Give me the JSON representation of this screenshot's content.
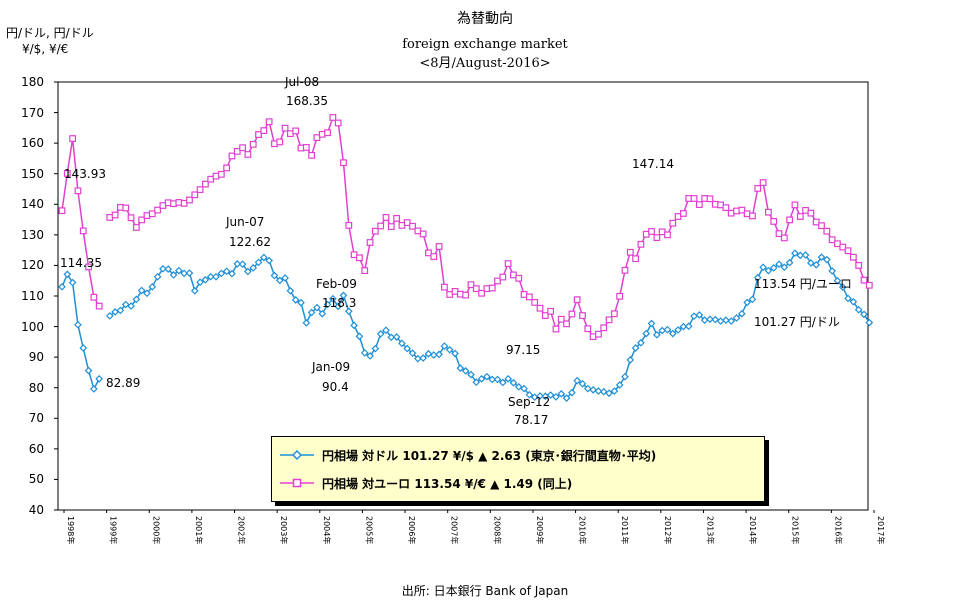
{
  "title": {
    "line1": "為替動向",
    "line2": "foreign exchange market",
    "line3": "<8月/August-2016>"
  },
  "y_unit": {
    "line1": "円/ドル, 円/ドル",
    "line2": "¥/$, ¥/€"
  },
  "legend": {
    "usd": "円相場 対ドル 101.27 ¥/$ ▲ 2.63 (東京･銀行間直物･平均)",
    "eur": "円相場 対ユーロ 113.54 ¥/€ ▲ 1.49 (同上)"
  },
  "source": "出所: 日本銀行 Bank of Japan",
  "annotations": {
    "usd_1998": "114.35",
    "eur_2000": "143.93",
    "usd_2005": "82.89",
    "usd_peak_month": "Jun-07",
    "usd_peak_value": "122.62",
    "eur_peak_month": "Jul-08",
    "eur_peak_value": "168.35",
    "eur_feb09_month": "Feb-09",
    "eur_feb09_value": "118.3",
    "usd_jan09_month": "Jan-09",
    "usd_jan09_value": "90.4",
    "eur_low_value": "97.15",
    "usd_low_month": "Sep-12",
    "usd_low_value": "78.17",
    "eur_2014_value": "147.14",
    "eur_latest": "113.54 円/ユーロ",
    "usd_latest": "101.27 円/ドル"
  },
  "colors": {
    "usd": "#1e8fd8",
    "eur": "#e040d0",
    "legend_bg": "#ffffcc"
  },
  "chart_data": {
    "type": "line",
    "ylim": [
      40,
      180
    ],
    "yticks": [
      40,
      50,
      60,
      70,
      80,
      90,
      100,
      110,
      120,
      130,
      140,
      150,
      160,
      170,
      180
    ],
    "x_labels": [
      "1998年",
      "1999年",
      "2000年",
      "2001年",
      "2002年",
      "2003年",
      "2004年",
      "2005年",
      "2006年",
      "2007年",
      "2008年",
      "2009年",
      "2010年",
      "2011年",
      "2012年",
      "2013年",
      "2014年",
      "2015年",
      "2016年",
      "2017年"
    ],
    "xlim": [
      0,
      151
    ],
    "series": [
      {
        "name": "円相場 対ドル",
        "marker": "diamond",
        "points": [
          [
            0,
            113.0
          ],
          [
            1,
            117.1
          ],
          [
            2,
            114.4
          ],
          [
            3,
            100.6
          ],
          [
            4,
            93.0
          ],
          [
            5,
            85.6
          ],
          [
            6,
            79.6
          ],
          [
            7,
            82.9
          ],
          [
            8,
            null
          ],
          [
            9,
            103.5
          ],
          [
            10,
            104.8
          ],
          [
            11,
            105.3
          ],
          [
            12,
            107.2
          ],
          [
            13,
            106.7
          ],
          [
            14,
            108.9
          ],
          [
            15,
            111.8
          ],
          [
            16,
            110.9
          ],
          [
            17,
            113.0
          ],
          [
            18,
            116.3
          ],
          [
            19,
            118.9
          ],
          [
            20,
            118.8
          ],
          [
            21,
            116.9
          ],
          [
            22,
            118.3
          ],
          [
            23,
            117.4
          ],
          [
            24,
            117.5
          ],
          [
            25,
            111.7
          ],
          [
            26,
            114.5
          ],
          [
            27,
            115.3
          ],
          [
            28,
            116.3
          ],
          [
            29,
            116.3
          ],
          [
            30,
            117.4
          ],
          [
            31,
            118.1
          ],
          [
            32,
            117.3
          ],
          [
            33,
            120.5
          ],
          [
            34,
            120.4
          ],
          [
            35,
            118.0
          ],
          [
            36,
            119.2
          ],
          [
            37,
            121.0
          ],
          [
            38,
            122.6
          ],
          [
            39,
            121.6
          ],
          [
            40,
            116.7
          ],
          [
            41,
            115.1
          ],
          [
            42,
            115.9
          ],
          [
            43,
            111.7
          ],
          [
            44,
            108.7
          ],
          [
            45,
            107.8
          ],
          [
            46,
            101.2
          ],
          [
            47,
            104.6
          ],
          [
            48,
            106.2
          ],
          [
            49,
            104.2
          ],
          [
            50,
            107.2
          ],
          [
            51,
            109.1
          ],
          [
            52,
            106.6
          ],
          [
            53,
            110.2
          ],
          [
            54,
            105.0
          ],
          [
            55,
            100.4
          ],
          [
            56,
            96.8
          ],
          [
            57,
            91.4
          ],
          [
            58,
            90.4
          ],
          [
            59,
            92.8
          ],
          [
            60,
            97.6
          ],
          [
            61,
            98.8
          ],
          [
            62,
            96.5
          ],
          [
            63,
            96.6
          ],
          [
            64,
            94.5
          ],
          [
            65,
            92.8
          ],
          [
            66,
            91.3
          ],
          [
            67,
            89.5
          ],
          [
            68,
            89.7
          ],
          [
            69,
            91.1
          ],
          [
            70,
            90.7
          ],
          [
            71,
            90.9
          ],
          [
            72,
            93.6
          ],
          [
            73,
            92.4
          ],
          [
            74,
            91.2
          ],
          [
            75,
            86.4
          ],
          [
            76,
            85.5
          ],
          [
            77,
            84.3
          ],
          [
            78,
            81.8
          ],
          [
            79,
            82.9
          ],
          [
            80,
            83.6
          ],
          [
            81,
            82.7
          ],
          [
            82,
            82.7
          ],
          [
            83,
            81.7
          ],
          [
            84,
            82.9
          ],
          [
            85,
            81.6
          ],
          [
            86,
            80.3
          ],
          [
            87,
            79.7
          ],
          [
            88,
            77.7
          ],
          [
            89,
            76.9
          ],
          [
            90,
            77.3
          ],
          [
            91,
            77.2
          ],
          [
            92,
            77.6
          ],
          [
            93,
            77.0
          ],
          [
            94,
            78.0
          ],
          [
            95,
            76.6
          ],
          [
            96,
            78.4
          ],
          [
            97,
            82.3
          ],
          [
            98,
            81.3
          ],
          [
            99,
            79.7
          ],
          [
            100,
            79.3
          ],
          [
            101,
            78.9
          ],
          [
            102,
            78.7
          ],
          [
            103,
            78.2
          ],
          [
            104,
            78.9
          ],
          [
            105,
            80.9
          ],
          [
            106,
            83.6
          ],
          [
            107,
            89.1
          ],
          [
            108,
            93.0
          ],
          [
            109,
            94.7
          ],
          [
            110,
            97.7
          ],
          [
            111,
            101.0
          ],
          [
            112,
            97.3
          ],
          [
            113,
            98.7
          ],
          [
            114,
            99.0
          ],
          [
            115,
            97.7
          ],
          [
            116,
            98.9
          ],
          [
            117,
            100.0
          ],
          [
            118,
            100.1
          ],
          [
            119,
            103.4
          ],
          [
            120,
            103.8
          ],
          [
            121,
            102.1
          ],
          [
            122,
            102.4
          ],
          [
            123,
            102.3
          ],
          [
            124,
            101.8
          ],
          [
            125,
            102.1
          ],
          [
            126,
            101.8
          ],
          [
            127,
            102.8
          ],
          [
            128,
            104.2
          ],
          [
            129,
            107.9
          ],
          [
            130,
            108.9
          ],
          [
            131,
            116.0
          ],
          [
            132,
            119.4
          ],
          [
            133,
            118.3
          ],
          [
            134,
            119.2
          ],
          [
            135,
            120.4
          ],
          [
            136,
            119.4
          ],
          [
            137,
            120.9
          ],
          [
            138,
            124.0
          ],
          [
            139,
            123.3
          ],
          [
            140,
            123.4
          ],
          [
            141,
            120.8
          ],
          [
            142,
            120.2
          ],
          [
            143,
            122.7
          ],
          [
            144,
            121.9
          ],
          [
            145,
            118.2
          ],
          [
            146,
            115.0
          ],
          [
            147,
            112.9
          ],
          [
            148,
            109.2
          ],
          [
            149,
            108.1
          ],
          [
            150,
            105.5
          ],
          [
            151,
            104.0
          ],
          [
            152,
            101.3
          ]
        ]
      },
      {
        "name": "円相場 対ユーロ",
        "marker": "square",
        "points": [
          [
            0,
            137.9
          ],
          [
            1,
            150.1
          ],
          [
            2,
            161.5
          ],
          [
            3,
            144.4
          ],
          [
            4,
            131.3
          ],
          [
            5,
            119.5
          ],
          [
            6,
            109.6
          ],
          [
            7,
            106.7
          ],
          [
            8,
            null
          ],
          [
            9,
            135.7
          ],
          [
            10,
            136.5
          ],
          [
            11,
            139.0
          ],
          [
            12,
            138.8
          ],
          [
            13,
            135.6
          ],
          [
            14,
            132.4
          ],
          [
            15,
            134.9
          ],
          [
            16,
            136.3
          ],
          [
            17,
            136.9
          ],
          [
            18,
            138.1
          ],
          [
            19,
            139.6
          ],
          [
            20,
            140.5
          ],
          [
            21,
            140.2
          ],
          [
            22,
            140.6
          ],
          [
            23,
            140.3
          ],
          [
            24,
            141.4
          ],
          [
            25,
            143.1
          ],
          [
            26,
            144.8
          ],
          [
            27,
            146.6
          ],
          [
            28,
            148.2
          ],
          [
            29,
            149.2
          ],
          [
            30,
            149.8
          ],
          [
            31,
            151.9
          ],
          [
            32,
            155.8
          ],
          [
            33,
            157.3
          ],
          [
            34,
            158.5
          ],
          [
            35,
            156.3
          ],
          [
            36,
            159.6
          ],
          [
            37,
            162.8
          ],
          [
            38,
            164.1
          ],
          [
            39,
            167.0
          ],
          [
            40,
            159.8
          ],
          [
            41,
            160.4
          ],
          [
            42,
            164.9
          ],
          [
            43,
            163.1
          ],
          [
            44,
            164.0
          ],
          [
            45,
            158.4
          ],
          [
            46,
            158.6
          ],
          [
            47,
            156.0
          ],
          [
            48,
            161.8
          ],
          [
            49,
            162.9
          ],
          [
            50,
            163.4
          ],
          [
            51,
            168.4
          ],
          [
            52,
            166.6
          ],
          [
            53,
            153.6
          ],
          [
            54,
            133.1
          ],
          [
            55,
            123.5
          ],
          [
            56,
            122.5
          ],
          [
            57,
            118.3
          ],
          [
            58,
            127.5
          ],
          [
            59,
            131.2
          ],
          [
            60,
            132.9
          ],
          [
            61,
            135.7
          ],
          [
            62,
            132.7
          ],
          [
            63,
            135.4
          ],
          [
            64,
            133.1
          ],
          [
            65,
            134.0
          ],
          [
            66,
            132.8
          ],
          [
            67,
            131.3
          ],
          [
            68,
            130.3
          ],
          [
            69,
            124.1
          ],
          [
            70,
            122.9
          ],
          [
            71,
            126.2
          ],
          [
            72,
            112.9
          ],
          [
            73,
            110.5
          ],
          [
            74,
            111.5
          ],
          [
            75,
            110.6
          ],
          [
            76,
            110.3
          ],
          [
            77,
            113.7
          ],
          [
            78,
            112.4
          ],
          [
            79,
            110.9
          ],
          [
            80,
            112.4
          ],
          [
            81,
            112.6
          ],
          [
            82,
            114.9
          ],
          [
            83,
            116.2
          ],
          [
            84,
            120.6
          ],
          [
            85,
            116.9
          ],
          [
            86,
            115.8
          ],
          [
            87,
            110.5
          ],
          [
            88,
            109.7
          ],
          [
            89,
            107.9
          ],
          [
            90,
            106.0
          ],
          [
            91,
            103.6
          ],
          [
            92,
            105.0
          ],
          [
            93,
            99.2
          ],
          [
            94,
            102.4
          ],
          [
            95,
            100.9
          ],
          [
            96,
            104.1
          ],
          [
            97,
            108.8
          ],
          [
            98,
            103.6
          ],
          [
            99,
            99.3
          ],
          [
            100,
            96.7
          ],
          [
            101,
            97.5
          ],
          [
            102,
            99.6
          ],
          [
            103,
            102.2
          ],
          [
            104,
            104.2
          ],
          [
            105,
            109.9
          ],
          [
            106,
            118.4
          ],
          [
            107,
            124.3
          ],
          [
            108,
            122.2
          ],
          [
            109,
            126.9
          ],
          [
            110,
            130.2
          ],
          [
            111,
            131.1
          ],
          [
            112,
            129.1
          ],
          [
            113,
            131.0
          ],
          [
            114,
            130.0
          ],
          [
            115,
            133.8
          ],
          [
            116,
            136.0
          ],
          [
            117,
            137.0
          ],
          [
            118,
            141.9
          ],
          [
            119,
            141.9
          ],
          [
            120,
            139.9
          ],
          [
            121,
            141.9
          ],
          [
            122,
            141.8
          ],
          [
            123,
            140.0
          ],
          [
            124,
            139.8
          ],
          [
            125,
            138.9
          ],
          [
            126,
            137.1
          ],
          [
            127,
            137.8
          ],
          [
            128,
            138.1
          ],
          [
            129,
            136.9
          ],
          [
            130,
            136.2
          ],
          [
            131,
            145.2
          ],
          [
            132,
            147.1
          ],
          [
            133,
            137.4
          ],
          [
            134,
            134.4
          ],
          [
            135,
            130.4
          ],
          [
            136,
            129.0
          ],
          [
            137,
            134.9
          ],
          [
            138,
            139.8
          ],
          [
            139,
            136.0
          ],
          [
            140,
            138.0
          ],
          [
            141,
            137.1
          ],
          [
            142,
            134.2
          ],
          [
            143,
            133.0
          ],
          [
            144,
            131.2
          ],
          [
            145,
            128.4
          ],
          [
            146,
            127.1
          ],
          [
            147,
            126.0
          ],
          [
            148,
            124.8
          ],
          [
            149,
            122.7
          ],
          [
            150,
            120.0
          ],
          [
            151,
            115.2
          ],
          [
            152,
            113.5
          ]
        ]
      }
    ]
  }
}
